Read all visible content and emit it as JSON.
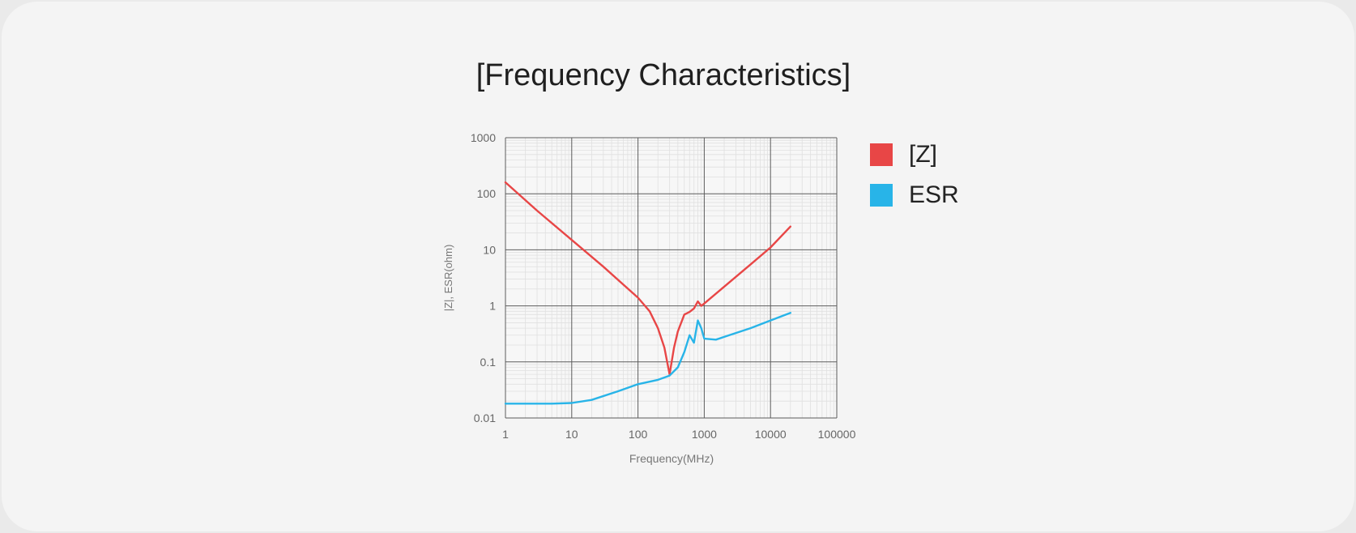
{
  "chart_data": {
    "type": "line",
    "title": "[Frequency Characteristics]",
    "xlabel": "Frequency(MHz)",
    "ylabel": "|Z|, ESR(ohm)",
    "x_scale": "log",
    "y_scale": "log",
    "xlim": [
      1,
      100000
    ],
    "ylim": [
      0.01,
      1000
    ],
    "x_ticks": [
      "1",
      "10",
      "100",
      "1000",
      "10000",
      "100000"
    ],
    "y_ticks": [
      "1000",
      "100",
      "10",
      "1",
      "0.1",
      "0.01"
    ],
    "grid": true,
    "legend_position": "right",
    "series": [
      {
        "name": "[Z]",
        "color": "#e84646",
        "x": [
          1,
          3,
          10,
          30,
          100,
          150,
          200,
          250,
          300,
          350,
          400,
          500,
          600,
          700,
          800,
          900,
          1000,
          2000,
          5000,
          10000,
          20000
        ],
        "y": [
          160,
          50,
          15,
          5,
          1.4,
          0.8,
          0.4,
          0.18,
          0.06,
          0.18,
          0.35,
          0.7,
          0.78,
          0.9,
          1.2,
          1.0,
          1.1,
          2.2,
          5.5,
          11,
          26
        ]
      },
      {
        "name": "ESR",
        "color": "#28b4e8",
        "x": [
          1,
          5,
          10,
          20,
          50,
          100,
          200,
          300,
          400,
          500,
          600,
          700,
          800,
          900,
          1000,
          1500,
          2000,
          5000,
          10000,
          20000
        ],
        "y": [
          0.018,
          0.018,
          0.0185,
          0.021,
          0.03,
          0.04,
          0.048,
          0.057,
          0.08,
          0.15,
          0.3,
          0.22,
          0.55,
          0.4,
          0.26,
          0.25,
          0.28,
          0.4,
          0.55,
          0.75
        ]
      }
    ]
  }
}
